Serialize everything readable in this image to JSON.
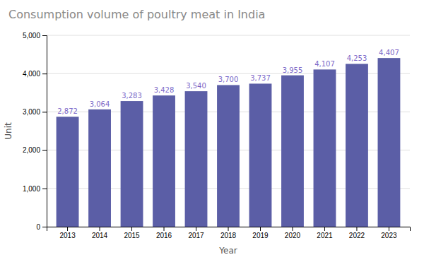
{
  "chart_data": {
    "type": "bar",
    "title": "Consumption volume of poultry meat in India",
    "xlabel": "Year",
    "ylabel": "Unit",
    "categories": [
      "2013",
      "2014",
      "2015",
      "2016",
      "2017",
      "2018",
      "2019",
      "2020",
      "2021",
      "2022",
      "2023"
    ],
    "values": [
      2872,
      3064,
      3283,
      3428,
      3540,
      3700,
      3737,
      3955,
      4107,
      4253,
      4407
    ],
    "value_labels": [
      "2,872",
      "3,064",
      "3,283",
      "3,428",
      "3,540",
      "3,700",
      "3,737",
      "3,955",
      "4,107",
      "4,253",
      "4,407"
    ],
    "color": "#5B5EA6",
    "ylim": [
      0,
      5000
    ],
    "yticks": [
      0,
      {
        "value": 1000,
        "label": "1,000"
      },
      {
        "value": 2000,
        "label": "2,000"
      },
      {
        "value": 3000,
        "label": "3,000"
      },
      {
        "value": 4000,
        "label": "4,000"
      },
      {
        "value": 5000,
        "label": "5,000"
      }
    ],
    "grid": true,
    "data_labels": true
  }
}
